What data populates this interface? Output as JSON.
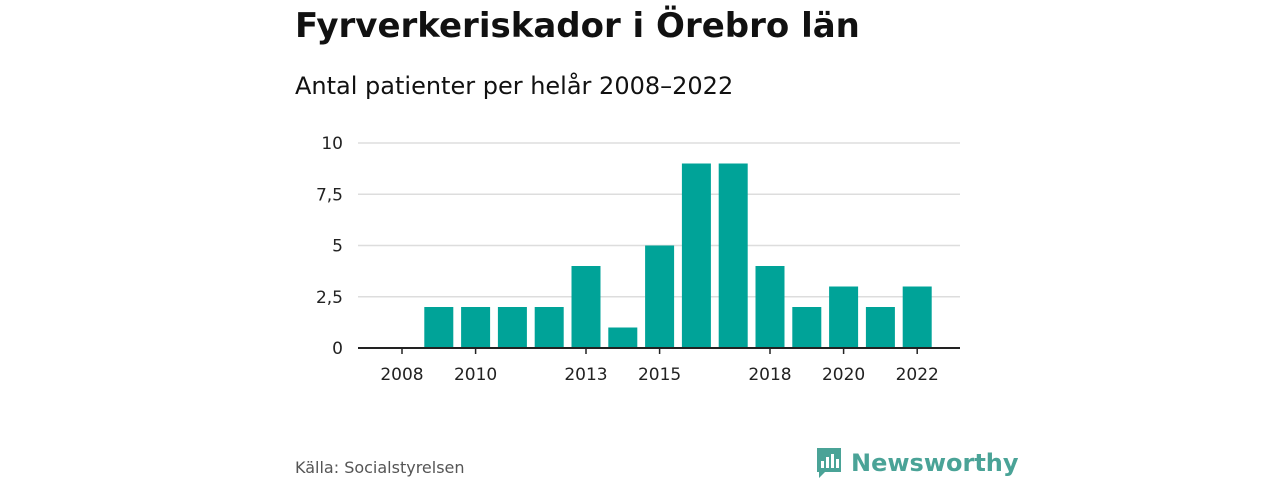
{
  "header": {
    "title": "Fyrverkeriskador i Örebro län",
    "subtitle": "Antal patienter per helår 2008–2022"
  },
  "footer": {
    "source": "Källa: Socialstyrelsen",
    "brand": "Newsworthy"
  },
  "colors": {
    "bar": "#00a398",
    "grid": "#dddddd",
    "axis": "#222222",
    "brand": "#4aa397"
  },
  "chart_data": {
    "type": "bar",
    "categories": [
      "2008",
      "2009",
      "2010",
      "2011",
      "2012",
      "2013",
      "2014",
      "2015",
      "2016",
      "2017",
      "2018",
      "2019",
      "2020",
      "2021",
      "2022"
    ],
    "values": [
      0,
      2,
      2,
      2,
      2,
      4,
      1,
      5,
      9,
      9,
      4,
      2,
      3,
      2,
      3
    ],
    "xtick_labels": [
      "2008",
      "2010",
      "2013",
      "2015",
      "2018",
      "2020",
      "2022"
    ],
    "yticks": [
      0,
      2.5,
      5,
      7.5,
      10
    ],
    "ytick_labels": [
      "0",
      "2,5",
      "5",
      "7,5",
      "10"
    ],
    "ylim": [
      0,
      10
    ],
    "grid": true
  }
}
